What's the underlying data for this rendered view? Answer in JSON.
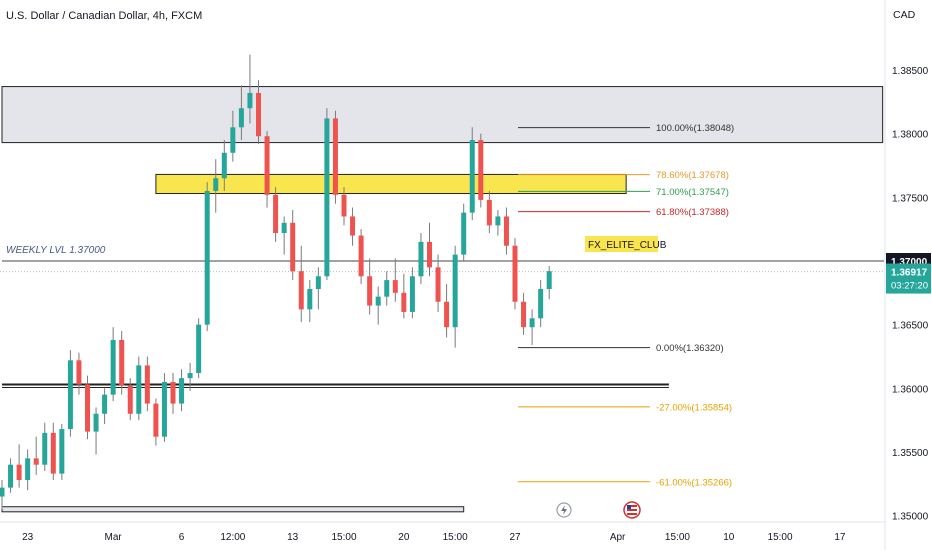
{
  "header": {
    "title": "U.S. Dollar / Canadian Dollar, 4h, FXCM",
    "currency": "CAD",
    "brand_label": "FX_ELITE_CLUB"
  },
  "chart_data": {
    "type": "candlestick",
    "symbol": "USDCAD",
    "timeframe": "4h",
    "source": "FXCM",
    "y_axis": {
      "min": 1.3495,
      "max": 1.3905,
      "ticks": [
        {
          "value": 1.385,
          "label": "1.38500"
        },
        {
          "value": 1.38,
          "label": "1.38000"
        },
        {
          "value": 1.375,
          "label": "1.37500"
        },
        {
          "value": 1.365,
          "label": "1.36500"
        },
        {
          "value": 1.36,
          "label": "1.36000"
        },
        {
          "value": 1.355,
          "label": "1.35500"
        },
        {
          "value": 1.35,
          "label": "1.35000"
        }
      ]
    },
    "x_axis": {
      "ticks": [
        {
          "i": 3,
          "label": "23"
        },
        {
          "i": 13,
          "label": "Mar"
        },
        {
          "i": 21,
          "label": "6"
        },
        {
          "i": 27,
          "label": "12:00"
        },
        {
          "i": 34,
          "label": "13"
        },
        {
          "i": 40,
          "label": "15:00"
        },
        {
          "i": 47,
          "label": "20"
        },
        {
          "i": 53,
          "label": "15:00"
        },
        {
          "i": 60,
          "label": "27"
        },
        {
          "i": 72,
          "label": "Apr"
        },
        {
          "i": 79,
          "label": "15:00"
        },
        {
          "i": 85,
          "label": "10"
        },
        {
          "i": 91,
          "label": "15:00"
        },
        {
          "i": 98,
          "label": "17"
        }
      ]
    },
    "price_labels": {
      "level": {
        "value": 1.37,
        "label": "1.37000"
      },
      "current": {
        "value": 1.36917,
        "label": "1.36917",
        "countdown": "03:27:20"
      }
    },
    "zones": [
      {
        "name": "supply-zone",
        "from": 1.3793,
        "to": 1.3837,
        "start_i": 0,
        "end_i": 103,
        "color": "#e3e5ea"
      },
      {
        "name": "key-zone",
        "from": 1.3753,
        "to": 1.3768,
        "start_i": 18,
        "end_i": 73,
        "color": "#f9e54d"
      },
      {
        "name": "bottom-zone",
        "from": 1.3503,
        "to": 1.3507,
        "start_i": 0,
        "end_i": 54,
        "color": "#e3e5ea"
      }
    ],
    "horizontal_lines": [
      {
        "name": "weekly-level-line",
        "value": 1.37,
        "label": "WEEKLY LVL 1.37000",
        "start_i": 0,
        "end_i": 104,
        "color": "#444444"
      },
      {
        "name": "support-line",
        "value": 1.3603,
        "start_i": 0,
        "end_i": 78,
        "color": "#222222"
      }
    ],
    "fibonacci": [
      {
        "label": "100.00%(1.38048)",
        "value": 1.38048,
        "color": "#333333"
      },
      {
        "label": "78.60%(1.37678)",
        "value": 1.37678,
        "color": "#e89a2b"
      },
      {
        "label": "71.00%(1.37547)",
        "value": 1.37547,
        "color": "#2e9e4f"
      },
      {
        "label": "61.80%(1.37388)",
        "value": 1.37388,
        "color": "#c62828"
      },
      {
        "label": "0.00%(1.36320)",
        "value": 1.3632,
        "color": "#333333"
      },
      {
        "label": "-27.00%(1.35854)",
        "value": 1.35854,
        "color": "#e8a200"
      },
      {
        "label": "-61.00%(1.35266)",
        "value": 1.35266,
        "color": "#e8a200"
      }
    ],
    "candles": [
      [
        1.3515,
        1.3528,
        1.3505,
        1.3522
      ],
      [
        1.3522,
        1.3545,
        1.3518,
        1.354
      ],
      [
        1.354,
        1.3556,
        1.3522,
        1.3528
      ],
      [
        1.3528,
        1.3552,
        1.352,
        1.3545
      ],
      [
        1.3545,
        1.3562,
        1.3532,
        1.354
      ],
      [
        1.354,
        1.3573,
        1.3535,
        1.3565
      ],
      [
        1.3565,
        1.3573,
        1.3528,
        1.3533
      ],
      [
        1.3533,
        1.3572,
        1.3528,
        1.3568
      ],
      [
        1.3568,
        1.363,
        1.3562,
        1.3622
      ],
      [
        1.3622,
        1.3628,
        1.3595,
        1.3603
      ],
      [
        1.3603,
        1.361,
        1.356,
        1.3566
      ],
      [
        1.3566,
        1.3585,
        1.3548,
        1.358
      ],
      [
        1.358,
        1.36,
        1.3572,
        1.3595
      ],
      [
        1.3595,
        1.3648,
        1.359,
        1.3638
      ],
      [
        1.3638,
        1.3645,
        1.3595,
        1.3602
      ],
      [
        1.3602,
        1.3608,
        1.3575,
        1.358
      ],
      [
        1.358,
        1.3625,
        1.3575,
        1.3618
      ],
      [
        1.3618,
        1.3625,
        1.3582,
        1.3588
      ],
      [
        1.3588,
        1.3592,
        1.3555,
        1.3562
      ],
      [
        1.3562,
        1.3612,
        1.3558,
        1.3605
      ],
      [
        1.3605,
        1.3612,
        1.358,
        1.3588
      ],
      [
        1.3588,
        1.3615,
        1.3582,
        1.3608
      ],
      [
        1.3608,
        1.362,
        1.3598,
        1.3612
      ],
      [
        1.3612,
        1.3655,
        1.3608,
        1.365
      ],
      [
        1.365,
        1.3762,
        1.3645,
        1.3755
      ],
      [
        1.3755,
        1.378,
        1.3738,
        1.3765
      ],
      [
        1.3765,
        1.3795,
        1.3755,
        1.3785
      ],
      [
        1.3785,
        1.3818,
        1.3778,
        1.3805
      ],
      [
        1.3805,
        1.3838,
        1.3795,
        1.382
      ],
      [
        1.382,
        1.3862,
        1.3808,
        1.3832
      ],
      [
        1.3832,
        1.3842,
        1.3792,
        1.3798
      ],
      [
        1.3798,
        1.3802,
        1.3742,
        1.3752
      ],
      [
        1.3752,
        1.3758,
        1.3715,
        1.3722
      ],
      [
        1.3722,
        1.3735,
        1.3705,
        1.373
      ],
      [
        1.373,
        1.374,
        1.3685,
        1.3692
      ],
      [
        1.3692,
        1.3712,
        1.3652,
        1.3662
      ],
      [
        1.3662,
        1.3685,
        1.3652,
        1.3678
      ],
      [
        1.3678,
        1.3695,
        1.3662,
        1.3688
      ],
      [
        1.3688,
        1.382,
        1.3685,
        1.3812
      ],
      [
        1.3812,
        1.3818,
        1.3745,
        1.3752
      ],
      [
        1.3752,
        1.3758,
        1.3728,
        1.3735
      ],
      [
        1.3735,
        1.3742,
        1.3712,
        1.372
      ],
      [
        1.372,
        1.3725,
        1.3682,
        1.3688
      ],
      [
        1.3688,
        1.3702,
        1.3658,
        1.3665
      ],
      [
        1.3665,
        1.368,
        1.365,
        1.3672
      ],
      [
        1.3672,
        1.3692,
        1.3665,
        1.3685
      ],
      [
        1.3685,
        1.3702,
        1.3668,
        1.3675
      ],
      [
        1.3675,
        1.369,
        1.3655,
        1.366
      ],
      [
        1.366,
        1.3695,
        1.3655,
        1.3688
      ],
      [
        1.3688,
        1.3722,
        1.3682,
        1.3715
      ],
      [
        1.3715,
        1.373,
        1.3688,
        1.3695
      ],
      [
        1.3695,
        1.3705,
        1.366,
        1.3668
      ],
      [
        1.3668,
        1.3682,
        1.364,
        1.3648
      ],
      [
        1.3648,
        1.3712,
        1.3632,
        1.3705
      ],
      [
        1.3705,
        1.3745,
        1.37,
        1.3738
      ],
      [
        1.3738,
        1.3805,
        1.3732,
        1.3795
      ],
      [
        1.3795,
        1.38,
        1.3742,
        1.3748
      ],
      [
        1.3748,
        1.3755,
        1.3722,
        1.3728
      ],
      [
        1.3728,
        1.374,
        1.372,
        1.3735
      ],
      [
        1.3735,
        1.3742,
        1.3705,
        1.3712
      ],
      [
        1.3712,
        1.3718,
        1.3662,
        1.3668
      ],
      [
        1.3668,
        1.3675,
        1.3642,
        1.3648
      ],
      [
        1.3648,
        1.3662,
        1.3634,
        1.3655
      ],
      [
        1.3655,
        1.3685,
        1.3648,
        1.3678
      ],
      [
        1.3678,
        1.3696,
        1.367,
        1.3692
      ]
    ],
    "colors": {
      "up": "#26a69a",
      "down": "#ef5350",
      "wick": "#7a7a7a",
      "current_badge": "#26a69a",
      "level_badge": "#131722"
    }
  }
}
